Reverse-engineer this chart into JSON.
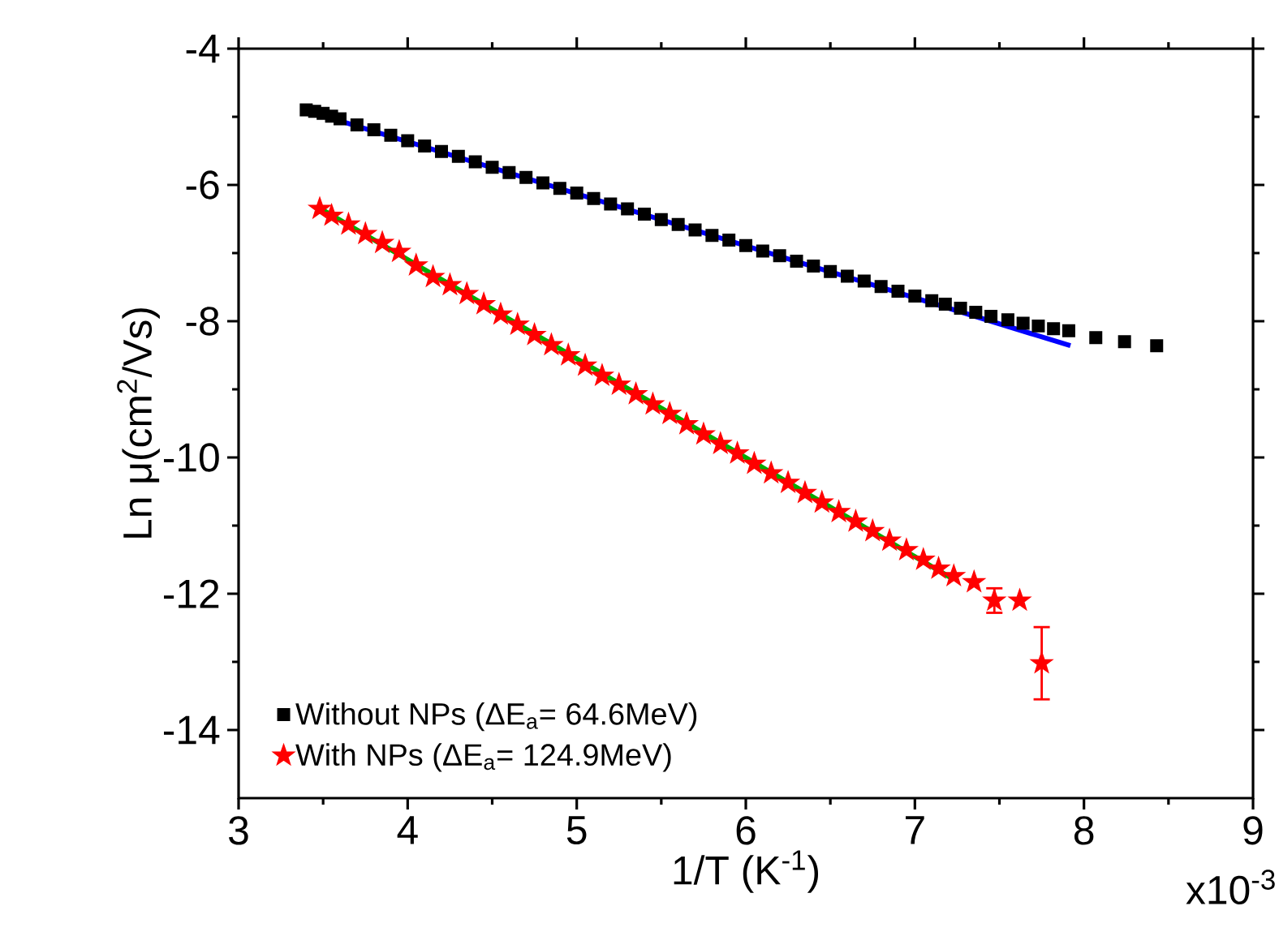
{
  "chart_data": {
    "type": "scatter",
    "xlabel": "1/T (K$^{-1}$)",
    "ylabel": "Ln μ(cm$^{2}$/Vs)",
    "xlim": [
      3,
      9
    ],
    "xticks": [
      3,
      4,
      5,
      6,
      7,
      8,
      9
    ],
    "ylim": [
      -15,
      -4
    ],
    "yticks": [
      -14,
      -12,
      -10,
      -8,
      -6,
      -4
    ],
    "grid": false,
    "legend": "bottom left",
    "annotations": [
      "x10$^{-3}$"
    ],
    "series": [
      {
        "name": "Without NPs (ΔE$_{a}$= 64.6MeV)",
        "color": "#000000",
        "marker": "square",
        "x": [
          3.4,
          3.45,
          3.5,
          3.55,
          3.6,
          3.7,
          3.8,
          3.9,
          4.0,
          4.1,
          4.2,
          4.3,
          4.4,
          4.5,
          4.6,
          4.7,
          4.8,
          4.9,
          5.0,
          5.1,
          5.2,
          5.3,
          5.4,
          5.5,
          5.6,
          5.7,
          5.8,
          5.9,
          6.0,
          6.1,
          6.2,
          6.3,
          6.4,
          6.5,
          6.6,
          6.7,
          6.8,
          6.9,
          7.0,
          7.1,
          7.18,
          7.27,
          7.36,
          7.45,
          7.55,
          7.64,
          7.73,
          7.82,
          7.91,
          8.07,
          8.24,
          8.43
        ],
        "values": [
          -4.9,
          -4.92,
          -4.95,
          -4.99,
          -5.03,
          -5.12,
          -5.19,
          -5.27,
          -5.35,
          -5.43,
          -5.51,
          -5.58,
          -5.66,
          -5.74,
          -5.82,
          -5.89,
          -5.97,
          -6.05,
          -6.12,
          -6.2,
          -6.28,
          -6.35,
          -6.43,
          -6.51,
          -6.58,
          -6.66,
          -6.74,
          -6.81,
          -6.89,
          -6.97,
          -7.04,
          -7.12,
          -7.19,
          -7.27,
          -7.34,
          -7.41,
          -7.49,
          -7.56,
          -7.63,
          -7.7,
          -7.75,
          -7.81,
          -7.87,
          -7.93,
          -7.98,
          -8.03,
          -8.07,
          -8.11,
          -8.14,
          -8.24,
          -8.3,
          -8.36
        ]
      },
      {
        "name": "With NPs (ΔE$_{a}$= 124.9MeV)",
        "color": "#ff0000",
        "marker": "star",
        "x": [
          3.48,
          3.55,
          3.65,
          3.75,
          3.85,
          3.95,
          4.05,
          4.15,
          4.25,
          4.35,
          4.45,
          4.55,
          4.65,
          4.75,
          4.85,
          4.95,
          5.05,
          5.15,
          5.25,
          5.35,
          5.45,
          5.55,
          5.65,
          5.75,
          5.85,
          5.95,
          6.05,
          6.15,
          6.25,
          6.35,
          6.45,
          6.55,
          6.65,
          6.75,
          6.85,
          6.95,
          7.05,
          7.14,
          7.23,
          7.35,
          7.47,
          7.62,
          7.75
        ],
        "values": [
          -6.35,
          -6.45,
          -6.58,
          -6.72,
          -6.85,
          -6.98,
          -7.18,
          -7.35,
          -7.47,
          -7.6,
          -7.75,
          -7.9,
          -8.05,
          -8.2,
          -8.35,
          -8.5,
          -8.65,
          -8.8,
          -8.93,
          -9.07,
          -9.22,
          -9.36,
          -9.51,
          -9.66,
          -9.8,
          -9.94,
          -10.09,
          -10.23,
          -10.37,
          -10.52,
          -10.66,
          -10.8,
          -10.94,
          -11.08,
          -11.22,
          -11.36,
          -11.5,
          -11.63,
          -11.74,
          -11.83,
          -12.1,
          -12.1,
          -13.02
        ],
        "errors": [
          null,
          null,
          null,
          null,
          null,
          null,
          null,
          null,
          null,
          null,
          null,
          null,
          null,
          null,
          null,
          null,
          null,
          null,
          null,
          null,
          null,
          null,
          null,
          null,
          null,
          null,
          null,
          null,
          null,
          null,
          null,
          null,
          null,
          null,
          null,
          null,
          null,
          null,
          null,
          null,
          0.18,
          null,
          0.53
        ]
      },
      {
        "type": "line",
        "color": "#0000ff",
        "x": [
          3.43,
          7.92
        ],
        "values": [
          -4.93,
          -8.36
        ]
      },
      {
        "type": "line",
        "color": "#00aa00",
        "x": [
          3.5,
          7.23
        ],
        "values": [
          -6.37,
          -11.79
        ]
      }
    ]
  }
}
